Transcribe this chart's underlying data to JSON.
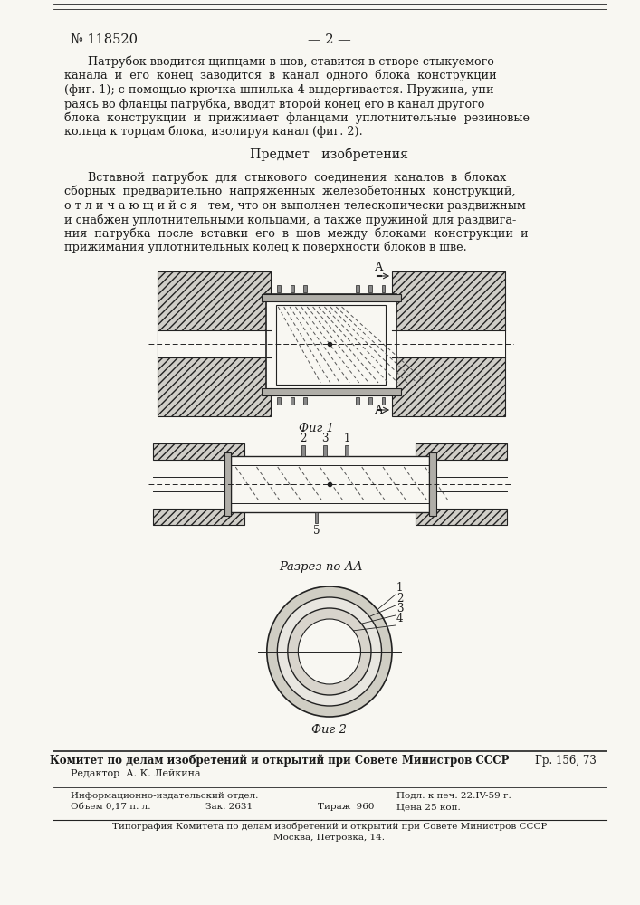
{
  "paper_color": "#f8f7f2",
  "text_color": "#1a1a1a",
  "line_color": "#222222",
  "hatch_fc": "#c8c8c0",
  "tube_fc": "#f0eeea",
  "flange_fc": "#b8b8b0",
  "ring_fc1": "#d0cec8",
  "ring_fc2": "#e8e6e0",
  "ring_fc3": "#d8d6d0",
  "header_number": "№ 118520",
  "header_page": "— 2 —",
  "para1_lines": [
    "Патрубок вводится щипцами в шов, ставится в створе стыкуемого",
    "канала  и  его  конец  заводится  в  канал  одного  блока  конструкции",
    "(фиг. 1); с помощью крючка шпилька 4 выдергивается. Пружина, упи-",
    "раясь во фланцы патрубка, вводит второй конец его в канал другого",
    "блока  конструкции  и  прижимает  фланцами  уплотнительные  резиновые",
    "кольца к торцам блока, изолируя канал (фиг. 2)."
  ],
  "section_title": "Предмет   изобретения",
  "para2_lines": [
    "Вставной  патрубок  для  стыкового  соединения  каналов  в  блоках",
    "сборных  предварительно  напряженных  железобетонных  конструкций,",
    "о т л и ч а ю щ и й с я   тем, что он выполнен телескопически раздвижным",
    "и снабжен уплотнительными кольцами, а также пружиной для раздвига-",
    "ния  патрубка  после  вставки  его  в  шов  между  блоками  конструкции  и",
    "прижимания уплотнительных колец к поверхности блоков в шве."
  ],
  "fig1_caption": "Фиг 1",
  "fig2_caption": "Фиг 2",
  "label_A": "А",
  "label_razrez": "Разрез по АА",
  "footer_bold": "Комитет по делам изобретений и открытий при Совете Министров СССР",
  "footer_gr": "Гр. 156, 73",
  "footer_red": "Редактор  А. К. Лейкина",
  "footer_info1": "Информационно-издательский отдел.",
  "footer_podl": "Подл. к печ. 22.IV-59 г.",
  "footer_obem": "Объем 0,17 п. л.",
  "footer_zak": "Зак. 2631",
  "footer_tirazh": "Тираж  960",
  "footer_cena": "Цена 25 коп.",
  "footer_tip1": "Типография Комитета по делам изобретений и открытий при Совете Министров СССР",
  "footer_tip2": "Москва, Петровка, 14."
}
